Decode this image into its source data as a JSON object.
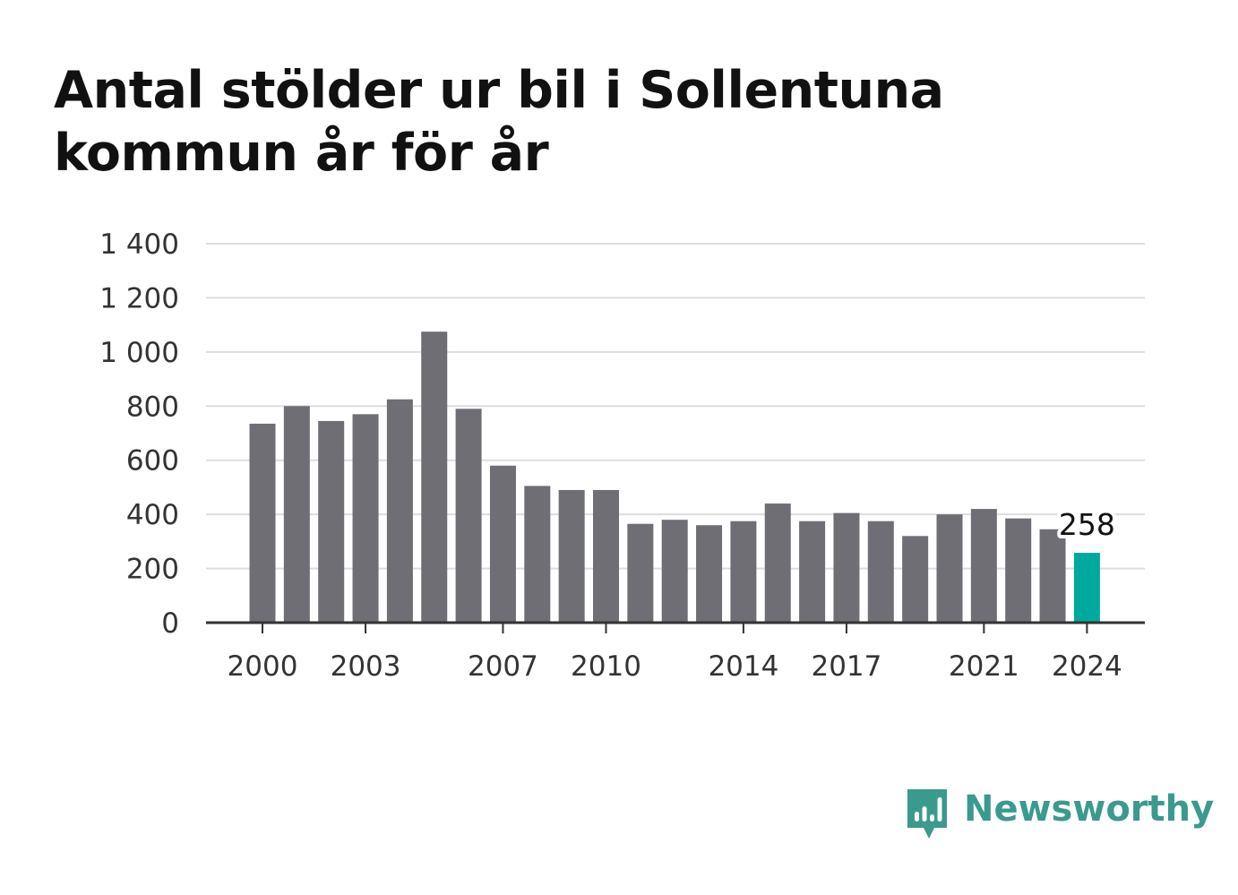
{
  "title": "Antal stölder ur bil i Sollentuna kommun år för år",
  "brand": {
    "name": "Newsworthy",
    "color": "#3a9a8e",
    "icon": "bar-chart-speech-bubble-icon"
  },
  "colors": {
    "bar": "#6f6e74",
    "highlight": "#00a99d",
    "grid": "#dddddd",
    "axis": "#333333"
  },
  "chart_data": {
    "type": "bar",
    "title": "Antal stölder ur bil i Sollentuna kommun år för år",
    "xlabel": "",
    "ylabel": "",
    "categories": [
      "2000",
      "2001",
      "2002",
      "2003",
      "2004",
      "2005",
      "2006",
      "2007",
      "2008",
      "2009",
      "2010",
      "2011",
      "2012",
      "2013",
      "2014",
      "2015",
      "2016",
      "2017",
      "2018",
      "2019",
      "2020",
      "2021",
      "2022",
      "2023",
      "2024"
    ],
    "values": [
      735,
      800,
      745,
      770,
      825,
      1075,
      790,
      580,
      505,
      490,
      490,
      365,
      380,
      360,
      375,
      440,
      375,
      405,
      375,
      320,
      400,
      420,
      385,
      345,
      258
    ],
    "ylim": [
      0,
      1400
    ],
    "yticks": [
      0,
      200,
      400,
      600,
      800,
      1000,
      1200,
      1400
    ],
    "ytick_labels": [
      "0",
      "200",
      "400",
      "600",
      "800",
      "1 000",
      "1 200",
      "1 400"
    ],
    "xtick_labels": [
      "2000",
      "2003",
      "2007",
      "2010",
      "2014",
      "2017",
      "2021",
      "2024"
    ],
    "highlight_category": "2024",
    "highlight_label": "258",
    "grid": true,
    "legend": "none"
  }
}
